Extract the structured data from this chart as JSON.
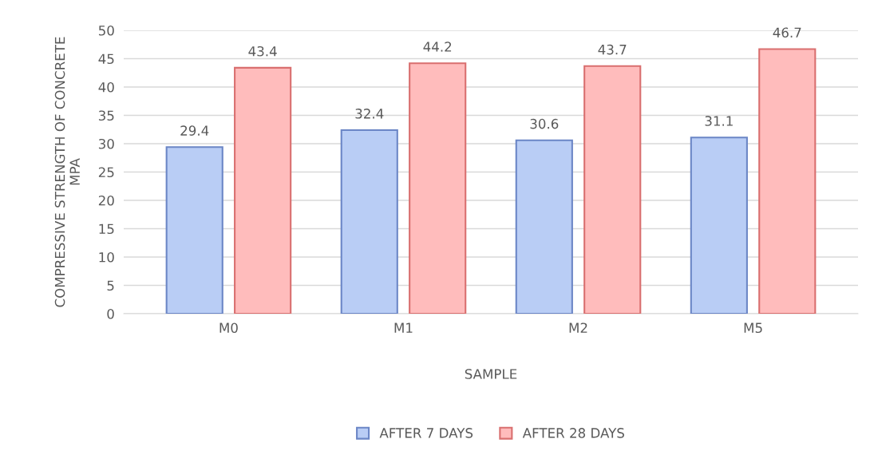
{
  "chart_data": {
    "type": "bar",
    "xlabel": "SAMPLE",
    "ylabel": "COMPRESSIVE STRENGTH OF CONCRETE\nMPA",
    "categories": [
      "M0",
      "M1",
      "M2",
      "M5"
    ],
    "series": [
      {
        "name": "AFTER 7 DAYS",
        "color": "#b9cdf5",
        "values": [
          29.4,
          32.4,
          30.6,
          31.1
        ]
      },
      {
        "name": "AFTER 28 DAYS",
        "color": "#ffbcbc",
        "values": [
          43.4,
          44.2,
          43.7,
          46.7
        ]
      }
    ],
    "ylim": [
      0,
      50
    ],
    "yticks": [
      0,
      5,
      10,
      15,
      20,
      25,
      30,
      35,
      40,
      45,
      50
    ],
    "grid": "y",
    "legend": "bottom",
    "data_labels": true
  }
}
